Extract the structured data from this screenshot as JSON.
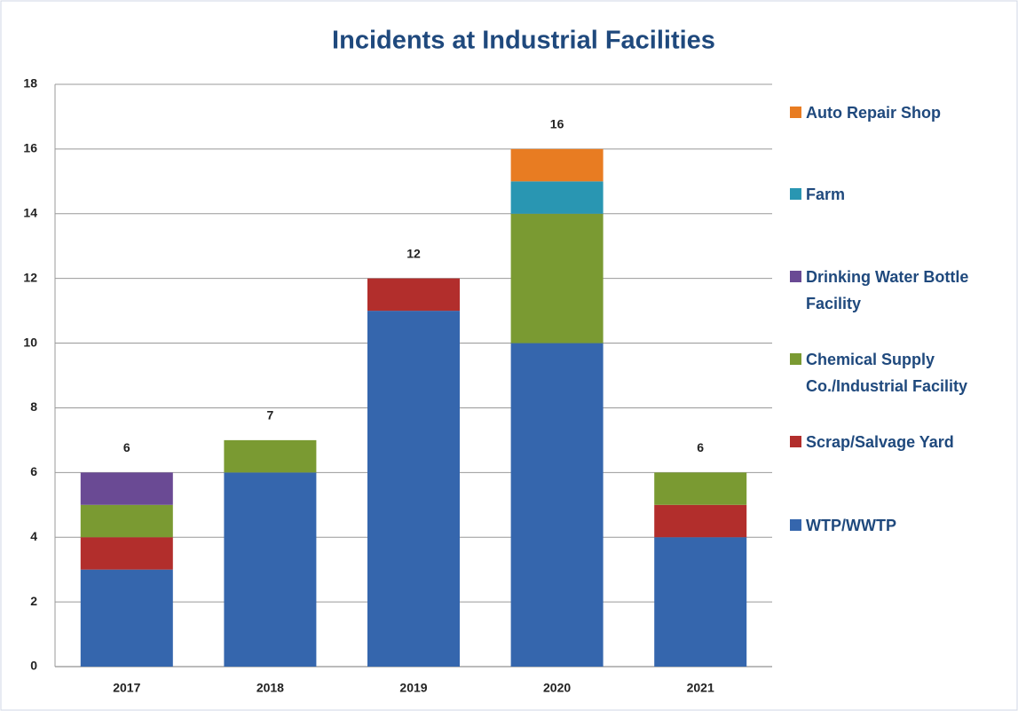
{
  "chart_data": {
    "type": "stacked_bar",
    "title": "Incidents at Industrial Facilities",
    "categories": [
      "2017",
      "2018",
      "2019",
      "2020",
      "2021"
    ],
    "series": [
      {
        "name": "WTP/WWTP",
        "color": "#3566ad",
        "values": [
          3,
          6,
          11,
          10,
          4
        ]
      },
      {
        "name": "Scrap/Salvage Yard",
        "color": "#b22e2c",
        "values": [
          1,
          0,
          1,
          0,
          1
        ]
      },
      {
        "name": "Chemical Supply Co./Industrial Facility",
        "color": "#7a9a32",
        "values": [
          1,
          1,
          0,
          4,
          1
        ]
      },
      {
        "name": "Drinking Water Bottle Facility",
        "color": "#6a4a94",
        "values": [
          1,
          0,
          0,
          0,
          0
        ]
      },
      {
        "name": "Farm",
        "color": "#2996b2",
        "values": [
          0,
          0,
          0,
          1,
          0
        ]
      },
      {
        "name": "Auto Repair Shop",
        "color": "#e87c22",
        "values": [
          0,
          0,
          0,
          1,
          0
        ]
      }
    ],
    "totals": [
      6,
      7,
      12,
      16,
      6
    ],
    "ylim": [
      0,
      18
    ],
    "yticks": [
      0,
      2,
      4,
      6,
      8,
      10,
      12,
      14,
      16,
      18
    ],
    "grid": true,
    "legend": "right"
  }
}
